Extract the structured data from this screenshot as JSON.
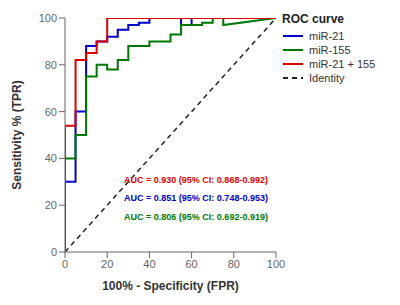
{
  "chart_data": {
    "type": "line",
    "title": "ROC curve",
    "xlabel": "100% - Specificity (FPR)",
    "ylabel": "Sensitivity % (TPR)",
    "xlim": [
      0,
      100
    ],
    "ylim": [
      0,
      100
    ],
    "xticks": [
      0,
      20,
      40,
      60,
      80,
      100
    ],
    "yticks": [
      0,
      20,
      40,
      60,
      80,
      100
    ],
    "grid": false,
    "legend": "upper right",
    "series": [
      {
        "name": "miR-21",
        "color": "#0000cc",
        "line_style": "solid",
        "x": [
          0,
          0,
          5,
          5,
          10,
          10,
          15,
          15,
          20,
          20,
          25,
          25,
          30,
          30,
          35,
          35,
          40,
          40,
          55,
          55,
          60,
          60,
          70,
          70,
          100
        ],
        "values": [
          0,
          30,
          30,
          60,
          60,
          88,
          88,
          90,
          90,
          92,
          92,
          95,
          95,
          97,
          97,
          98,
          98,
          100,
          100,
          97,
          97,
          100,
          100,
          100,
          100
        ]
      },
      {
        "name": "miR-155",
        "color": "#007700",
        "line_style": "solid",
        "x": [
          0,
          0,
          5,
          5,
          10,
          10,
          15,
          15,
          20,
          20,
          25,
          25,
          30,
          30,
          40,
          40,
          50,
          50,
          55,
          55,
          65,
          65,
          70,
          70,
          75,
          75,
          100
        ],
        "values": [
          0,
          40,
          40,
          50,
          50,
          75,
          75,
          80,
          80,
          78,
          78,
          82,
          82,
          88,
          88,
          90,
          90,
          93,
          93,
          97,
          97,
          98,
          98,
          100,
          100,
          97,
          100
        ]
      },
      {
        "name": "miR-21 + 155",
        "color": "#dd0000",
        "line_style": "solid",
        "x": [
          0,
          0,
          5,
          5,
          10,
          10,
          15,
          15,
          20,
          20,
          100
        ],
        "values": [
          0,
          54,
          54,
          82,
          82,
          85,
          85,
          90,
          90,
          100,
          100
        ]
      },
      {
        "name": "Identity",
        "color": "#222222",
        "line_style": "dashed",
        "x": [
          0,
          100
        ],
        "values": [
          0,
          100
        ]
      }
    ],
    "annotations": [
      {
        "text": "AUC = 0.930 (95% CI: 0.868-0.992)",
        "color": "#dd0000",
        "x": 28,
        "y": 31
      },
      {
        "text": "AUC = 0.851 (95% CI: 0.748-0.953)",
        "color": "#0000cc",
        "x": 28,
        "y": 23
      },
      {
        "text": "AUC = 0.806 (95% CI: 0.692-0.919)",
        "color": "#007700",
        "x": 28,
        "y": 15
      }
    ]
  }
}
